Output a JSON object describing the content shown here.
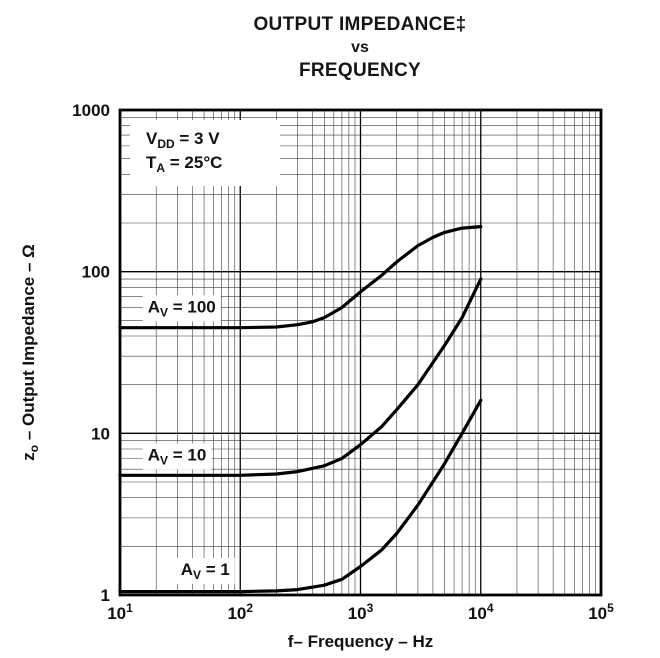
{
  "title": {
    "line1": "OUTPUT IMPEDANCE‡",
    "line2": "vs",
    "line3": "FREQUENCY"
  },
  "axes": {
    "x": {
      "label": "f– Frequency – Hz",
      "min_exp": 1,
      "max_exp": 5,
      "ticks": [
        {
          "base": "10",
          "exp": "1"
        },
        {
          "base": "10",
          "exp": "2"
        },
        {
          "base": "10",
          "exp": "3"
        },
        {
          "base": "10",
          "exp": "4"
        },
        {
          "base": "10",
          "exp": "5"
        }
      ]
    },
    "y": {
      "label_parts": {
        "main": "z",
        "sub": "o",
        "rest": " – Output Impedance – Ω"
      },
      "ticks": [
        "1",
        "10",
        "100",
        "1000"
      ]
    }
  },
  "inset": {
    "lines": [
      {
        "main": "V",
        "sub": "DD",
        "rest": " = 3 V"
      },
      {
        "main": "T",
        "sub": "A",
        "rest": " = 25°C"
      }
    ]
  },
  "chart_data": {
    "type": "line",
    "title": "OUTPUT IMPEDANCE vs FREQUENCY",
    "xlabel": "f– Frequency – Hz",
    "ylabel": "zo – Output Impedance – Ω",
    "x_scale": "log",
    "y_scale": "log",
    "xlim": [
      10,
      100000
    ],
    "ylim": [
      1,
      1000
    ],
    "grid": "log major and minor, both axes",
    "conditions": [
      "VDD = 3 V",
      "TA = 25°C"
    ],
    "legend_position": "inline-labels",
    "series": [
      {
        "name": "AV = 100",
        "label_parts": {
          "main": "A",
          "sub": "V",
          "rest": " = 100"
        },
        "label_at": [
          17,
          56
        ],
        "x": [
          10,
          50,
          100,
          200,
          300,
          400,
          500,
          700,
          1000,
          1500,
          2000,
          3000,
          4000,
          5000,
          7000,
          10000
        ],
        "y": [
          45,
          45,
          45,
          45.5,
          47,
          49,
          52,
          60,
          75,
          95,
          115,
          145,
          163,
          175,
          186,
          190
        ]
      },
      {
        "name": "AV = 10",
        "label_parts": {
          "main": "A",
          "sub": "V",
          "rest": " = 10"
        },
        "label_at": [
          17,
          6.8
        ],
        "x": [
          10,
          50,
          100,
          200,
          300,
          500,
          700,
          1000,
          1500,
          2000,
          3000,
          5000,
          7000,
          10000
        ],
        "y": [
          5.5,
          5.5,
          5.5,
          5.6,
          5.8,
          6.3,
          7.0,
          8.5,
          11,
          14,
          20,
          35,
          52,
          90
        ]
      },
      {
        "name": "AV = 1",
        "label_parts": {
          "main": "A",
          "sub": "V",
          "rest": " = 1"
        },
        "label_at": [
          32,
          1.33
        ],
        "x": [
          10,
          50,
          100,
          200,
          300,
          500,
          700,
          1000,
          1500,
          2000,
          3000,
          5000,
          7000,
          10000
        ],
        "y": [
          1.05,
          1.05,
          1.05,
          1.06,
          1.08,
          1.15,
          1.25,
          1.5,
          1.9,
          2.4,
          3.6,
          6.5,
          10,
          16
        ]
      }
    ]
  }
}
